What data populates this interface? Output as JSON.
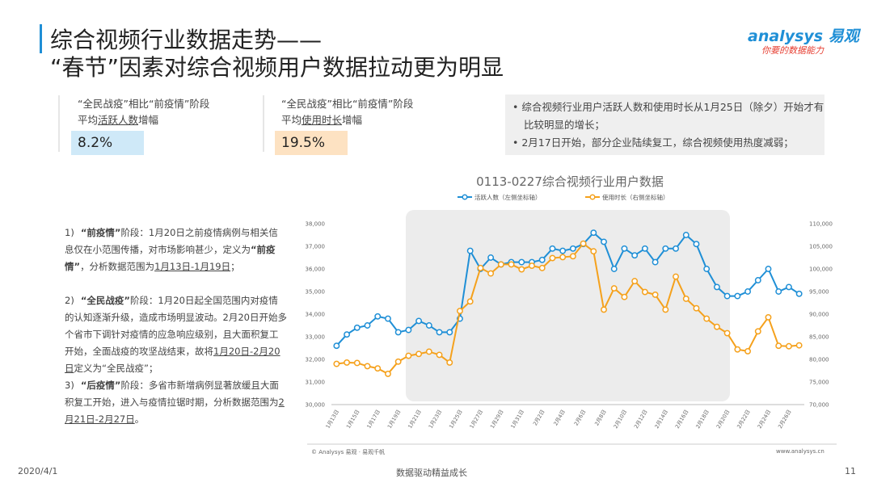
{
  "header": {
    "title_line1": "综合视频行业数据走势——",
    "title_line2": "“春节”因素对综合视频用户数据拉动更为明显",
    "logo": "nalysys 易观",
    "logo_a": "a",
    "slogan": "你要的数据能力"
  },
  "stats": [
    {
      "line1": "“全民战疫”相比“前疫情”阶段",
      "pre": "平均",
      "key": "活跃人数",
      "post": "增幅",
      "value": "8.2%"
    },
    {
      "line1": "“全民战疫”相比“前疫情”阶段",
      "pre": "平均",
      "key": "使用时长",
      "post": "增幅",
      "value": "19.5%"
    }
  ],
  "bullets": [
    "综合视频行业用户活跃人数和使用时长从1月25日（除夕）开始才有比较明显的增长；",
    "2月17日开始，部分企业陆续复工，综合视频使用热度减弱；"
  ],
  "notes": [
    {
      "num": "1)",
      "parts": [
        "“前疫情”",
        "阶段：1月20日之前疫情病例与相关信息仅在小范围传播，对市场影响甚少，定义为",
        "“前疫情”",
        "，分析数据范围为",
        "1月13日-1月19日",
        "；"
      ]
    },
    {
      "num": "2)",
      "parts": [
        "“全民战疫”",
        "阶段：1月20日起全国范围内对疫情的认知逐渐升级，造成市场明显波动。2月20日开始多个省市下调针对疫情的应急响应级别，且大面积复工开始，全面战疫的攻坚战结束，故将",
        "1月20日-2月20日",
        "定义为“全民战疫”；"
      ]
    },
    {
      "num": "3)",
      "parts": [
        "“后疫情”",
        "阶段：多省市新增病例显著放缓且大面积复工开始，进入与疫情拉锯时期，分析数据范围为",
        "2月21日-2月27日",
        "。"
      ]
    }
  ],
  "chart_data": {
    "type": "line",
    "title": "0113-0227综合视频行业用户数据",
    "categories": [
      "1月13日",
      null,
      "1月15日",
      null,
      "1月17日",
      null,
      "1月19日",
      null,
      "1月21日",
      null,
      "1月23日",
      null,
      "1月25日",
      null,
      "1月27日",
      null,
      "1月29日",
      null,
      "1月31日",
      null,
      "2月2日",
      null,
      "2月4日",
      null,
      "2月6日",
      null,
      "2月8日",
      null,
      "2月10日",
      null,
      "2月12日",
      null,
      "2月14日",
      null,
      "2月16日",
      null,
      "2月18日",
      null,
      "2月20日",
      null,
      "2月22日",
      null,
      "2月24日",
      null,
      "2月26日",
      null
    ],
    "series": [
      {
        "name": "活跃人数（左侧坐标轴）",
        "color": "#1f8fd6",
        "values": [
          32600,
          33100,
          33400,
          33500,
          33900,
          33800,
          33200,
          33300,
          33700,
          33500,
          33200,
          33200,
          33800,
          36800,
          36000,
          36500,
          36200,
          36300,
          36300,
          36300,
          36400,
          36900,
          36800,
          36900,
          37100,
          37600,
          37200,
          36000,
          36900,
          36600,
          36900,
          36300,
          36900,
          36900,
          37500,
          37100,
          36000,
          35200,
          34800,
          34800,
          35000,
          35500,
          36000,
          35000,
          35200,
          34900
        ]
      },
      {
        "name": "使用时长（右侧坐标轴）",
        "color": "#f5a11c",
        "axis": "y2",
        "values": [
          79000,
          79300,
          79200,
          78500,
          78000,
          76800,
          79500,
          80800,
          81200,
          81700,
          81000,
          79300,
          90700,
          92800,
          100200,
          99000,
          101000,
          101000,
          99900,
          100700,
          100200,
          102400,
          102600,
          102800,
          105600,
          103900,
          91000,
          95700,
          93800,
          97300,
          94900,
          94300,
          91000,
          98300,
          93400,
          91300,
          89000,
          87200,
          85800,
          82200,
          81800,
          86200,
          89300,
          83000,
          82900,
          83100
        ]
      }
    ],
    "ylim": [
      30000,
      38000
    ],
    "yticks": [
      {
        "value": 30000,
        "label": "30,000"
      },
      {
        "value": 31000,
        "label": "31,000"
      },
      {
        "value": 32000,
        "label": "32,000"
      },
      {
        "value": 33000,
        "label": "33,000"
      },
      {
        "value": 34000,
        "label": "34,000"
      },
      {
        "value": 35000,
        "label": "35,000"
      },
      {
        "value": 36000,
        "label": "36,000"
      },
      {
        "value": 37000,
        "label": "37,000"
      },
      {
        "value": 38000,
        "label": "38,000"
      }
    ],
    "y2lim": [
      70000,
      110000
    ],
    "y2ticks": [
      {
        "value": 70000,
        "label": "70,000"
      },
      {
        "value": 75000,
        "label": "75,000"
      },
      {
        "value": 80000,
        "label": "80,000"
      },
      {
        "value": 85000,
        "label": "85,000"
      },
      {
        "value": 90000,
        "label": "90,000"
      },
      {
        "value": 95000,
        "label": "95,000"
      },
      {
        "value": 100000,
        "label": "100,000"
      },
      {
        "value": 105000,
        "label": "105,000"
      },
      {
        "value": 110000,
        "label": "110,000"
      }
    ]
  },
  "source": "© Analysys 易观 · 易观千帆",
  "site": "www.analysys.cn",
  "footer": {
    "date": "2020/4/1",
    "slogan": "数据驱动精益成长",
    "page": "11"
  }
}
